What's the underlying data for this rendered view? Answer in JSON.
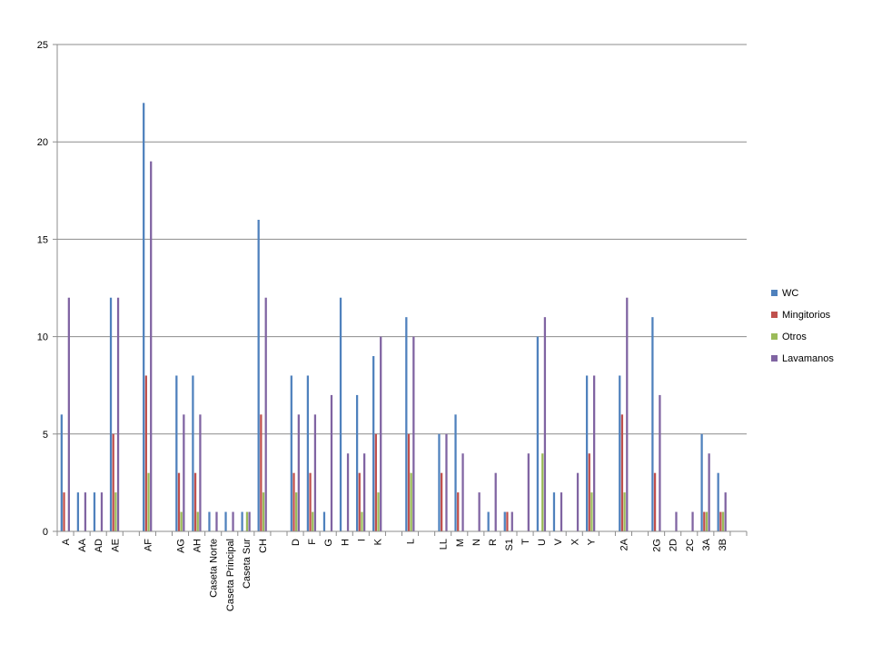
{
  "chart_data": {
    "type": "bar",
    "title": "",
    "xlabel": "",
    "ylabel": "",
    "ylim": [
      0,
      25
    ],
    "yticks": [
      0,
      5,
      10,
      15,
      20,
      25
    ],
    "grid": true,
    "legend_position": "right",
    "categories": [
      "A",
      "AA",
      "AD",
      "AE",
      "",
      "AF",
      "",
      "AG",
      "AH",
      "Caseta Norte",
      "Caseta Principal",
      "Caseta Sur",
      "CH",
      "",
      "D",
      "F",
      "G",
      "H",
      "I",
      "K",
      "",
      "L",
      "",
      "LL",
      "M",
      "N",
      "R",
      "S1",
      "T",
      "U",
      "V",
      "X",
      "Y",
      "",
      "2A",
      "",
      "2G",
      "2D",
      "2C",
      "3A",
      "3B",
      ""
    ],
    "series": [
      {
        "name": "WC",
        "color": "#4f81bd",
        "values": [
          6,
          2,
          2,
          12,
          0,
          22,
          0,
          8,
          8,
          1,
          1,
          1,
          16,
          0,
          8,
          8,
          1,
          12,
          7,
          9,
          0,
          11,
          0,
          5,
          6,
          0,
          1,
          1,
          0,
          10,
          2,
          0,
          8,
          0,
          8,
          0,
          11,
          0,
          0,
          5,
          3,
          0
        ]
      },
      {
        "name": "Mingitorios",
        "color": "#c0504d",
        "values": [
          2,
          0,
          0,
          5,
          0,
          8,
          0,
          3,
          3,
          0,
          0,
          0,
          6,
          0,
          3,
          3,
          0,
          0,
          3,
          5,
          0,
          5,
          0,
          3,
          2,
          0,
          0,
          1,
          0,
          0,
          0,
          0,
          4,
          0,
          6,
          0,
          3,
          0,
          0,
          1,
          1,
          0
        ]
      },
      {
        "name": "Otros",
        "color": "#9bbb59",
        "values": [
          0,
          0,
          0,
          2,
          0,
          3,
          0,
          1,
          1,
          0,
          0,
          1,
          2,
          0,
          2,
          1,
          0,
          0,
          1,
          2,
          0,
          3,
          0,
          0,
          0,
          0,
          0,
          0,
          0,
          4,
          0,
          0,
          2,
          0,
          2,
          0,
          0,
          0,
          0,
          1,
          1,
          0
        ]
      },
      {
        "name": "Lavamanos",
        "color": "#8064a2",
        "values": [
          12,
          2,
          2,
          12,
          0,
          19,
          0,
          6,
          6,
          1,
          1,
          1,
          12,
          0,
          6,
          6,
          7,
          4,
          4,
          10,
          0,
          10,
          0,
          5,
          4,
          2,
          3,
          1,
          4,
          11,
          2,
          3,
          8,
          0,
          12,
          0,
          7,
          1,
          1,
          4,
          2,
          0
        ]
      }
    ]
  }
}
